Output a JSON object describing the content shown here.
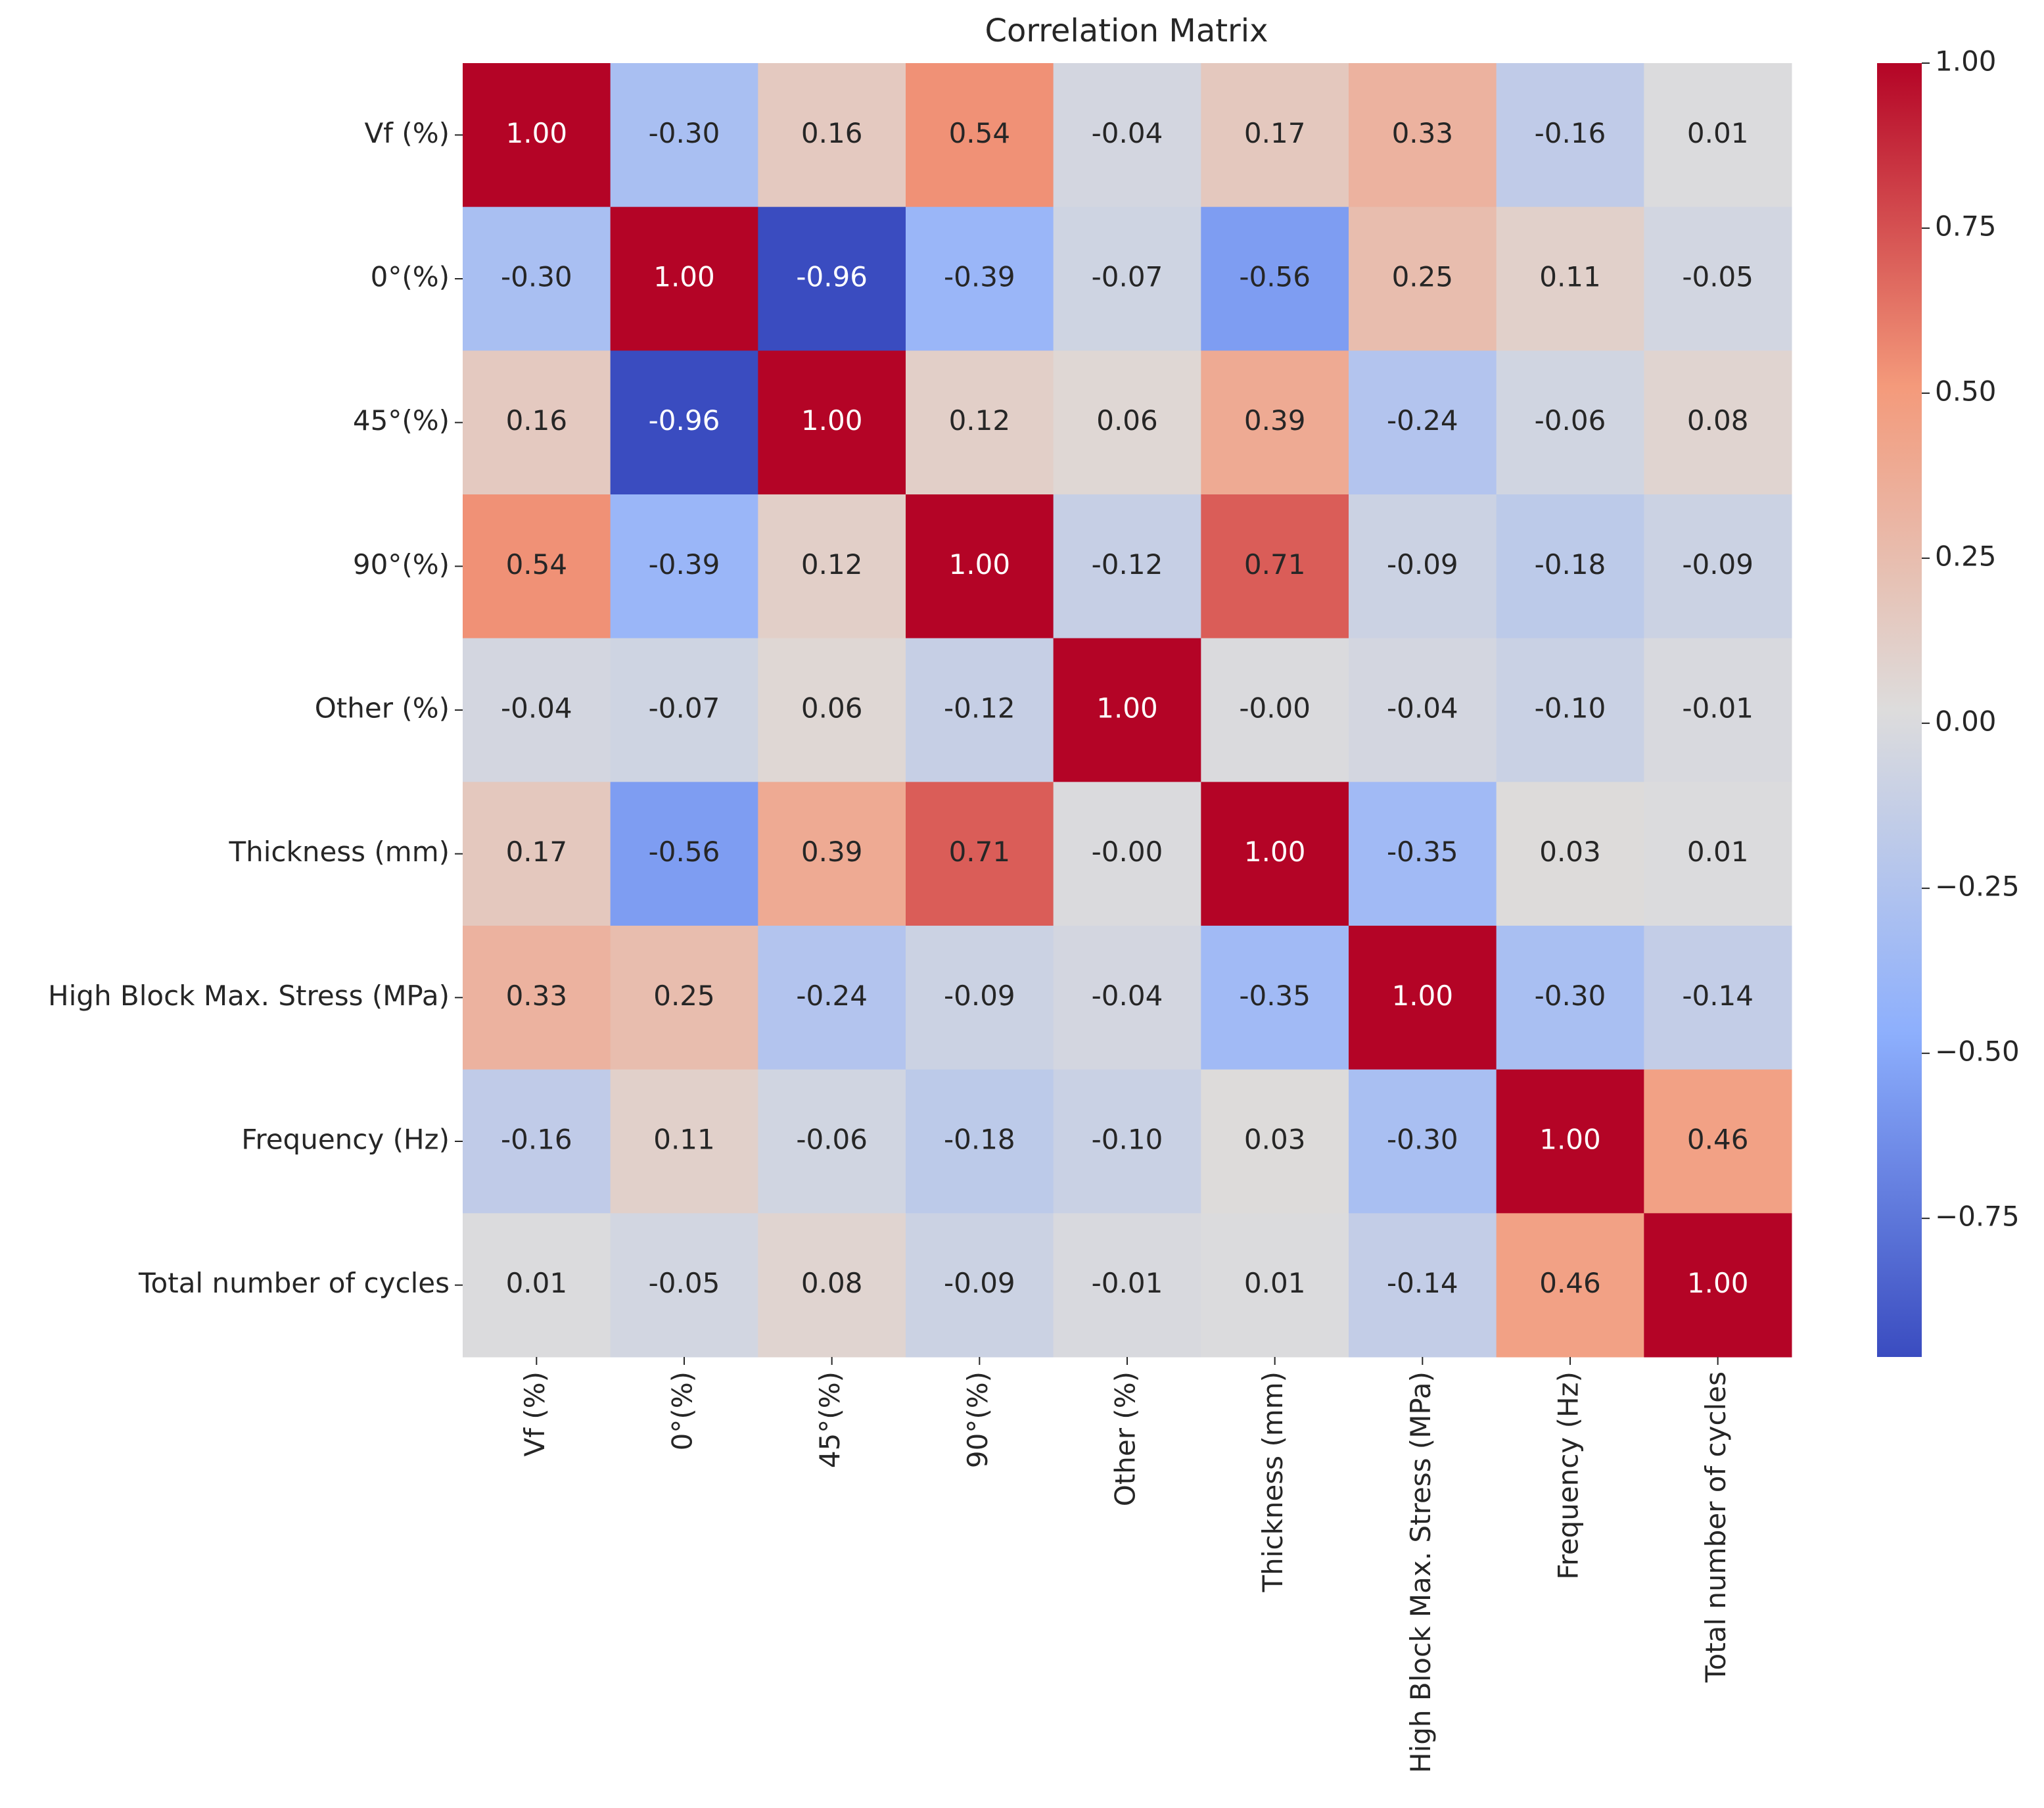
{
  "chart_data": {
    "type": "heatmap",
    "title": "Correlation Matrix",
    "categories": [
      "Vf (%)",
      "0°(%)",
      "45°(%)",
      "90°(%)",
      "Other (%)",
      "Thickness (mm)",
      "High Block Max. Stress (MPa)",
      "Frequency (Hz)",
      "Total number of cycles"
    ],
    "values": [
      [
        1.0,
        -0.3,
        0.16,
        0.54,
        -0.04,
        0.17,
        0.33,
        -0.16,
        0.01
      ],
      [
        -0.3,
        1.0,
        -0.96,
        -0.39,
        -0.07,
        -0.56,
        0.25,
        0.11,
        -0.05
      ],
      [
        0.16,
        -0.96,
        1.0,
        0.12,
        0.06,
        0.39,
        -0.24,
        -0.06,
        0.08
      ],
      [
        0.54,
        -0.39,
        0.12,
        1.0,
        -0.12,
        0.71,
        -0.09,
        -0.18,
        -0.09
      ],
      [
        -0.04,
        -0.07,
        0.06,
        -0.12,
        1.0,
        0,
        -0.04,
        -0.1,
        -0.01
      ],
      [
        0.17,
        -0.56,
        0.39,
        0.71,
        0,
        1.0,
        -0.35,
        0.03,
        0.01
      ],
      [
        0.33,
        0.25,
        -0.24,
        -0.09,
        -0.04,
        -0.35,
        1.0,
        -0.3,
        -0.14
      ],
      [
        -0.16,
        0.11,
        -0.06,
        -0.18,
        -0.1,
        0.03,
        -0.3,
        1.0,
        0.46
      ],
      [
        0.01,
        -0.05,
        0.08,
        -0.09,
        -0.01,
        0.01,
        -0.14,
        0.46,
        1.0
      ]
    ],
    "value_labels": [
      [
        "1.00",
        "-0.30",
        "0.16",
        "0.54",
        "-0.04",
        "0.17",
        "0.33",
        "-0.16",
        "0.01"
      ],
      [
        "-0.30",
        "1.00",
        "-0.96",
        "-0.39",
        "-0.07",
        "-0.56",
        "0.25",
        "0.11",
        "-0.05"
      ],
      [
        "0.16",
        "-0.96",
        "1.00",
        "0.12",
        "0.06",
        "0.39",
        "-0.24",
        "-0.06",
        "0.08"
      ],
      [
        "0.54",
        "-0.39",
        "0.12",
        "1.00",
        "-0.12",
        "0.71",
        "-0.09",
        "-0.18",
        "-0.09"
      ],
      [
        "-0.04",
        "-0.07",
        "0.06",
        "-0.12",
        "1.00",
        "-0.00",
        "-0.04",
        "-0.10",
        "-0.01"
      ],
      [
        "0.17",
        "-0.56",
        "0.39",
        "0.71",
        "-0.00",
        "1.00",
        "-0.35",
        "0.03",
        "0.01"
      ],
      [
        "0.33",
        "0.25",
        "-0.24",
        "-0.09",
        "-0.04",
        "-0.35",
        "1.00",
        "-0.30",
        "-0.14"
      ],
      [
        "-0.16",
        "0.11",
        "-0.06",
        "-0.18",
        "-0.10",
        "0.03",
        "-0.30",
        "1.00",
        "0.46"
      ],
      [
        "0.01",
        "-0.05",
        "0.08",
        "-0.09",
        "-0.01",
        "0.01",
        "-0.14",
        "0.46",
        "1.00"
      ]
    ],
    "colormap": "coolwarm",
    "zlim": [
      -0.96,
      1.0
    ],
    "zticks": [
      {
        "value": 1.0,
        "label": "1.00"
      },
      {
        "value": 0.75,
        "label": "0.75"
      },
      {
        "value": 0.5,
        "label": "0.50"
      },
      {
        "value": 0.25,
        "label": "0.25"
      },
      {
        "value": 0,
        "label": "0.00"
      },
      {
        "value": -0.25,
        "label": "−0.25"
      },
      {
        "value": -0.5,
        "label": "−0.50"
      },
      {
        "value": -0.75,
        "label": "−0.75"
      }
    ]
  }
}
